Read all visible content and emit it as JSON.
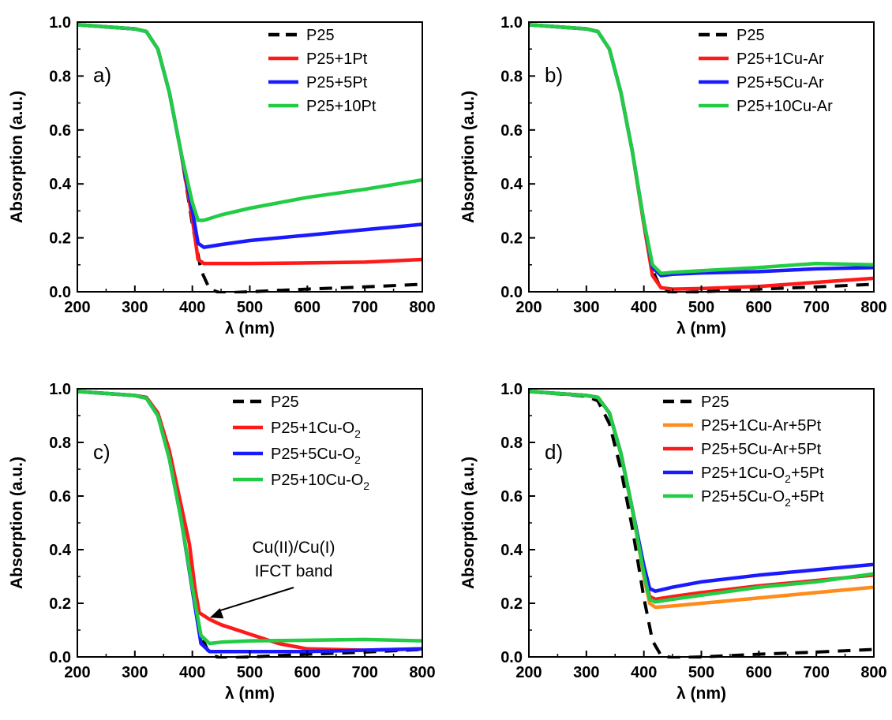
{
  "colors": {
    "P25": "#000000",
    "red": "#ff1a1a",
    "blue": "#1a1aff",
    "green": "#22cc44",
    "orange": "#ff8c1a"
  },
  "chart_data": [
    {
      "type": "line",
      "panel": "a)",
      "xlabel": "λ (nm)",
      "ylabel": "Absorption (a.u.)",
      "xlim": [
        200,
        800
      ],
      "ylim": [
        0,
        1
      ],
      "xticks": [
        "200",
        "300",
        "400",
        "500",
        "600",
        "700",
        "800"
      ],
      "yticks": [
        "0.0",
        "0.2",
        "0.4",
        "0.6",
        "0.8",
        "1.0"
      ],
      "legend_position": "top-right",
      "series": [
        {
          "name": "P25",
          "color": "#000000",
          "dash": true,
          "x": [
            200,
            300,
            320,
            340,
            360,
            380,
            400,
            415,
            430,
            450,
            500,
            600,
            700,
            800
          ],
          "y": [
            0.99,
            0.975,
            0.965,
            0.9,
            0.74,
            0.52,
            0.25,
            0.08,
            0.01,
            -0.005,
            0.0,
            0.01,
            0.018,
            0.028
          ]
        },
        {
          "name": "P25+1Pt",
          "color": "#ff1a1a",
          "x": [
            200,
            300,
            320,
            340,
            360,
            380,
            400,
            410,
            420,
            450,
            500,
            600,
            700,
            800
          ],
          "y": [
            0.99,
            0.975,
            0.965,
            0.9,
            0.74,
            0.52,
            0.27,
            0.12,
            0.105,
            0.105,
            0.105,
            0.107,
            0.11,
            0.12
          ]
        },
        {
          "name": "P25+5Pt",
          "color": "#1a1aff",
          "x": [
            200,
            300,
            320,
            340,
            360,
            380,
            400,
            410,
            420,
            450,
            500,
            600,
            700,
            800
          ],
          "y": [
            0.99,
            0.975,
            0.965,
            0.9,
            0.74,
            0.52,
            0.3,
            0.18,
            0.165,
            0.175,
            0.19,
            0.21,
            0.23,
            0.25
          ]
        },
        {
          "name": "P25+10Pt",
          "color": "#22cc44",
          "x": [
            200,
            300,
            320,
            340,
            360,
            380,
            400,
            410,
            420,
            450,
            500,
            600,
            700,
            800
          ],
          "y": [
            0.99,
            0.975,
            0.965,
            0.9,
            0.74,
            0.52,
            0.33,
            0.265,
            0.265,
            0.285,
            0.31,
            0.35,
            0.38,
            0.415
          ]
        }
      ]
    },
    {
      "type": "line",
      "panel": "b)",
      "xlabel": "λ (nm)",
      "ylabel": "Absorption (a.u.)",
      "xlim": [
        200,
        800
      ],
      "ylim": [
        0,
        1
      ],
      "xticks": [
        "200",
        "300",
        "400",
        "500",
        "600",
        "700",
        "800"
      ],
      "yticks": [
        "0.0",
        "0.2",
        "0.4",
        "0.6",
        "0.8",
        "1.0"
      ],
      "legend_position": "top-right",
      "series": [
        {
          "name": "P25",
          "color": "#000000",
          "dash": true,
          "x": [
            200,
            300,
            320,
            340,
            360,
            380,
            400,
            415,
            430,
            450,
            500,
            600,
            700,
            800
          ],
          "y": [
            0.99,
            0.975,
            0.965,
            0.9,
            0.74,
            0.52,
            0.25,
            0.08,
            0.01,
            -0.005,
            0.0,
            0.01,
            0.018,
            0.028
          ]
        },
        {
          "name": "P25+1Cu-Ar",
          "color": "#ff1a1a",
          "x": [
            200,
            300,
            320,
            340,
            360,
            380,
            400,
            415,
            430,
            450,
            500,
            600,
            700,
            800
          ],
          "y": [
            0.99,
            0.975,
            0.965,
            0.9,
            0.74,
            0.52,
            0.25,
            0.06,
            0.015,
            0.01,
            0.012,
            0.02,
            0.035,
            0.05
          ]
        },
        {
          "name": "P25+5Cu-Ar",
          "color": "#1a1aff",
          "x": [
            200,
            300,
            320,
            340,
            360,
            380,
            400,
            415,
            430,
            450,
            500,
            600,
            700,
            800
          ],
          "y": [
            0.99,
            0.975,
            0.965,
            0.9,
            0.74,
            0.52,
            0.26,
            0.09,
            0.06,
            0.065,
            0.07,
            0.075,
            0.085,
            0.09
          ]
        },
        {
          "name": "P25+10Cu-Ar",
          "color": "#22cc44",
          "x": [
            200,
            300,
            320,
            340,
            360,
            380,
            400,
            415,
            430,
            450,
            500,
            600,
            700,
            800
          ],
          "y": [
            0.99,
            0.975,
            0.965,
            0.9,
            0.74,
            0.52,
            0.26,
            0.1,
            0.068,
            0.072,
            0.078,
            0.09,
            0.105,
            0.1
          ]
        }
      ]
    },
    {
      "type": "line",
      "panel": "c)",
      "xlabel": "λ (nm)",
      "ylabel": "Absorption (a.u.)",
      "xlim": [
        200,
        800
      ],
      "ylim": [
        0,
        1
      ],
      "xticks": [
        "200",
        "300",
        "400",
        "500",
        "600",
        "700",
        "800"
      ],
      "yticks": [
        "0.0",
        "0.2",
        "0.4",
        "0.6",
        "0.8",
        "1.0"
      ],
      "legend_position": "top-right",
      "annotation": {
        "lines": [
          "Cu(II)/Cu(I)",
          "IFCT band"
        ],
        "target_x": 425,
        "target_y": 0.135
      },
      "series": [
        {
          "name": "P25",
          "color": "#000000",
          "dash": true,
          "x": [
            200,
            300,
            320,
            340,
            360,
            380,
            400,
            415,
            430,
            450,
            500,
            600,
            700,
            800
          ],
          "y": [
            0.99,
            0.975,
            0.965,
            0.9,
            0.74,
            0.52,
            0.25,
            0.08,
            0.01,
            -0.005,
            0.0,
            0.01,
            0.018,
            0.028
          ]
        },
        {
          "name": "P25+1Cu-O₂",
          "color": "#ff1a1a",
          "x": [
            200,
            300,
            320,
            340,
            360,
            380,
            395,
            405,
            412,
            430,
            450,
            500,
            550,
            600,
            700,
            800
          ],
          "y": [
            0.99,
            0.975,
            0.968,
            0.91,
            0.77,
            0.57,
            0.42,
            0.25,
            0.165,
            0.14,
            0.12,
            0.085,
            0.05,
            0.03,
            0.025,
            0.03
          ]
        },
        {
          "name": "P25+5Cu-O₂",
          "color": "#1a1aff",
          "x": [
            200,
            300,
            320,
            340,
            360,
            380,
            400,
            415,
            430,
            450,
            500,
            600,
            700,
            800
          ],
          "y": [
            0.99,
            0.975,
            0.965,
            0.9,
            0.74,
            0.52,
            0.25,
            0.05,
            0.02,
            0.02,
            0.02,
            0.02,
            0.025,
            0.03
          ]
        },
        {
          "name": "P25+10Cu-O₂",
          "color": "#22cc44",
          "x": [
            200,
            300,
            320,
            340,
            360,
            380,
            400,
            415,
            430,
            450,
            500,
            600,
            700,
            800
          ],
          "y": [
            0.99,
            0.975,
            0.965,
            0.9,
            0.74,
            0.52,
            0.26,
            0.08,
            0.05,
            0.055,
            0.06,
            0.062,
            0.065,
            0.06
          ]
        }
      ]
    },
    {
      "type": "line",
      "panel": "d)",
      "xlabel": "λ (nm)",
      "ylabel": "Absorption (a.u.)",
      "xlim": [
        200,
        800
      ],
      "ylim": [
        0,
        1
      ],
      "xticks": [
        "200",
        "300",
        "400",
        "500",
        "600",
        "700",
        "800"
      ],
      "yticks": [
        "0.0",
        "0.2",
        "0.4",
        "0.6",
        "0.8",
        "1.0"
      ],
      "legend_position": "top-right",
      "series": [
        {
          "name": "P25",
          "color": "#000000",
          "dash": true,
          "x": [
            200,
            300,
            320,
            340,
            360,
            380,
            400,
            415,
            430,
            450,
            500,
            600,
            700,
            800
          ],
          "y": [
            0.99,
            0.972,
            0.955,
            0.87,
            0.7,
            0.48,
            0.22,
            0.06,
            0.005,
            -0.003,
            0.0,
            0.01,
            0.018,
            0.028
          ]
        },
        {
          "name": "P25+1Cu-Ar+5Pt",
          "color": "#ff8c1a",
          "x": [
            200,
            300,
            320,
            340,
            360,
            380,
            400,
            410,
            420,
            450,
            500,
            600,
            700,
            800
          ],
          "y": [
            0.99,
            0.975,
            0.968,
            0.91,
            0.76,
            0.55,
            0.3,
            0.2,
            0.185,
            0.19,
            0.2,
            0.22,
            0.24,
            0.26
          ]
        },
        {
          "name": "P25+5Cu-Ar+5Pt",
          "color": "#ff1a1a",
          "x": [
            200,
            300,
            320,
            340,
            360,
            380,
            400,
            410,
            420,
            450,
            500,
            600,
            700,
            800
          ],
          "y": [
            0.99,
            0.975,
            0.968,
            0.91,
            0.76,
            0.55,
            0.32,
            0.225,
            0.215,
            0.225,
            0.24,
            0.265,
            0.285,
            0.305
          ]
        },
        {
          "name": "P25+1Cu-O₂+5Pt",
          "color": "#1a1aff",
          "x": [
            200,
            300,
            320,
            340,
            360,
            380,
            400,
            410,
            420,
            450,
            500,
            600,
            700,
            800
          ],
          "y": [
            0.99,
            0.975,
            0.968,
            0.91,
            0.76,
            0.55,
            0.34,
            0.255,
            0.245,
            0.26,
            0.28,
            0.305,
            0.325,
            0.345
          ]
        },
        {
          "name": "P25+5Cu-O₂+5Pt",
          "color": "#22cc44",
          "x": [
            200,
            300,
            320,
            340,
            360,
            380,
            400,
            410,
            420,
            450,
            500,
            600,
            700,
            800
          ],
          "y": [
            0.99,
            0.975,
            0.968,
            0.91,
            0.76,
            0.55,
            0.31,
            0.215,
            0.205,
            0.215,
            0.23,
            0.26,
            0.28,
            0.31
          ]
        }
      ]
    }
  ]
}
